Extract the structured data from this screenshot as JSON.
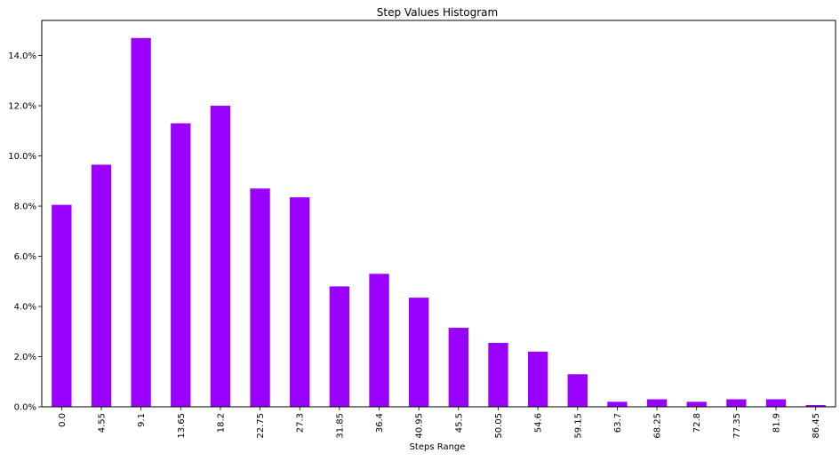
{
  "chart_data": {
    "type": "bar",
    "title": "Step Values Histogram",
    "xlabel": "Steps Range",
    "ylabel": "",
    "categories": [
      "0.0",
      "4.55",
      "9.1",
      "13.65",
      "18.2",
      "22.75",
      "27.3",
      "31.85",
      "36.4",
      "40.95",
      "45.5",
      "50.05",
      "54.6",
      "59.15",
      "63.7",
      "68.25",
      "72.8",
      "77.35",
      "81.9",
      "86.45"
    ],
    "values": [
      8.05,
      9.65,
      14.7,
      11.3,
      12.0,
      8.7,
      8.35,
      4.8,
      5.3,
      4.35,
      3.15,
      2.55,
      2.2,
      1.3,
      0.2,
      0.3,
      0.2,
      0.3,
      0.3,
      0.07
    ],
    "value_unit": "%",
    "ylim": [
      0,
      15.4
    ],
    "y_ticks": [
      "0.0%",
      "2.0%",
      "4.0%",
      "6.0%",
      "8.0%",
      "10.0%",
      "12.0%",
      "14.0%"
    ],
    "grid": false,
    "legend": "none",
    "bar_color": "#9900ff"
  }
}
